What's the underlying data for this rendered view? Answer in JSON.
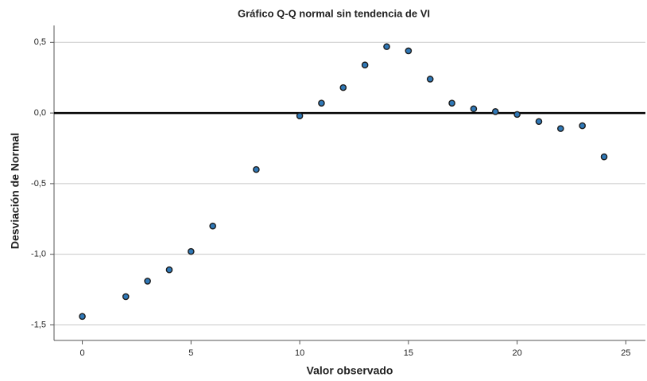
{
  "chart_data": {
    "type": "scatter",
    "title": "Gráfico Q-Q normal sin tendencia de VI",
    "xlabel": "Valor observado",
    "ylabel": "Desviación de Normal",
    "series": [
      {
        "color": "#2f78b7",
        "x": [
          0,
          2,
          3,
          4,
          5,
          6,
          8,
          10,
          11,
          12,
          13,
          14,
          15,
          16,
          17,
          18,
          19,
          20,
          21,
          22,
          23,
          24
        ],
        "values": [
          -1.44,
          -1.3,
          -1.19,
          -1.11,
          -0.98,
          -0.8,
          -0.4,
          -0.02,
          0.07,
          0.18,
          0.34,
          0.47,
          0.44,
          0.24,
          0.07,
          0.03,
          0.01,
          -0.01,
          -0.06,
          -0.11,
          -0.09,
          -0.31
        ]
      }
    ],
    "xlim": [
      -1.3,
      25.9
    ],
    "ylim": [
      -1.61,
      0.62
    ],
    "xticks": [
      0,
      5,
      10,
      15,
      20,
      25
    ],
    "yticks": [
      {
        "value": -1.5,
        "label": "-1,5"
      },
      {
        "value": -1.0,
        "label": "-1,0"
      },
      {
        "value": -0.5,
        "label": "-0,5"
      },
      {
        "value": 0.0,
        "label": "0,0"
      },
      {
        "value": 0.5,
        "label": "0,5"
      }
    ],
    "reference_line": {
      "y": 0
    },
    "grid": true
  }
}
